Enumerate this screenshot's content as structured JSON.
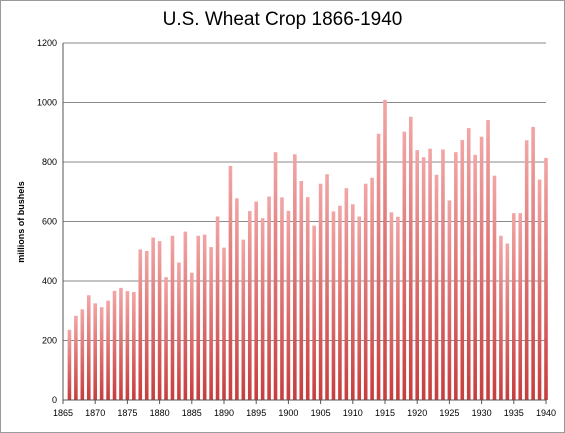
{
  "chart_data": {
    "type": "bar",
    "title": "U.S. Wheat Crop 1866-1940",
    "xlabel": "",
    "ylabel": "millions of bushels",
    "ylim": [
      0,
      1200
    ],
    "yticks": [
      0,
      200,
      400,
      600,
      800,
      1000,
      1200
    ],
    "xticks": [
      1865,
      1870,
      1875,
      1880,
      1885,
      1890,
      1895,
      1900,
      1905,
      1910,
      1915,
      1920,
      1925,
      1930,
      1935,
      1940
    ],
    "x": [
      1866,
      1867,
      1868,
      1869,
      1870,
      1871,
      1872,
      1873,
      1874,
      1875,
      1876,
      1877,
      1878,
      1879,
      1880,
      1881,
      1882,
      1883,
      1884,
      1885,
      1886,
      1887,
      1888,
      1889,
      1890,
      1891,
      1892,
      1893,
      1894,
      1895,
      1896,
      1897,
      1898,
      1899,
      1900,
      1901,
      1902,
      1903,
      1904,
      1905,
      1906,
      1907,
      1908,
      1909,
      1910,
      1911,
      1912,
      1913,
      1914,
      1915,
      1916,
      1917,
      1918,
      1919,
      1920,
      1921,
      1922,
      1923,
      1924,
      1925,
      1926,
      1927,
      1928,
      1929,
      1930,
      1931,
      1932,
      1933,
      1934,
      1935,
      1936,
      1937,
      1938,
      1939,
      1940
    ],
    "values": [
      236,
      283,
      305,
      352,
      325,
      312,
      334,
      367,
      377,
      366,
      363,
      506,
      501,
      546,
      534,
      413,
      552,
      462,
      566,
      428,
      552,
      556,
      514,
      617,
      512,
      787,
      678,
      539,
      635,
      667,
      611,
      684,
      833,
      681,
      636,
      826,
      736,
      682,
      586,
      727,
      759,
      634,
      653,
      712,
      658,
      617,
      727,
      747,
      895,
      1009,
      631,
      616,
      902,
      952,
      840,
      816,
      845,
      757,
      842,
      671,
      833,
      874,
      914,
      824,
      885,
      941,
      754,
      552,
      526,
      628,
      628,
      873,
      918,
      741,
      814
    ],
    "color": "#dc6060",
    "grid": true,
    "legend": "none"
  }
}
